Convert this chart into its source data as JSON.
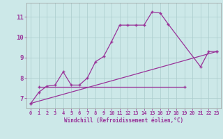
{
  "xlabel": "Windchill (Refroidissement éolien,°C)",
  "background_color": "#cce8e8",
  "grid_color": "#aacccc",
  "line_color": "#993399",
  "xlim": [
    -0.5,
    23.5
  ],
  "ylim": [
    6.5,
    11.7
  ],
  "xticks": [
    0,
    1,
    2,
    3,
    4,
    5,
    6,
    7,
    8,
    9,
    10,
    11,
    12,
    13,
    14,
    15,
    16,
    17,
    18,
    19,
    20,
    21,
    22,
    23
  ],
  "yticks": [
    7,
    8,
    9,
    10,
    11
  ],
  "ytick_labels": [
    "7",
    "8",
    "9",
    "10",
    "11"
  ],
  "line1_x": [
    0,
    1,
    2,
    3,
    4,
    5,
    6,
    7,
    8,
    9,
    10,
    11,
    12,
    13,
    14,
    15,
    16,
    17,
    21,
    22,
    23
  ],
  "line1_y": [
    6.75,
    7.3,
    7.6,
    7.65,
    8.3,
    7.65,
    7.65,
    8.0,
    8.8,
    9.05,
    9.8,
    10.6,
    10.6,
    10.6,
    10.6,
    11.25,
    11.2,
    10.65,
    8.55,
    9.3,
    9.3
  ],
  "line3_x": [
    0,
    23
  ],
  "line3_y": [
    6.75,
    9.3
  ],
  "line4_x": [
    1,
    19
  ],
  "line4_y": [
    7.55,
    7.55
  ]
}
